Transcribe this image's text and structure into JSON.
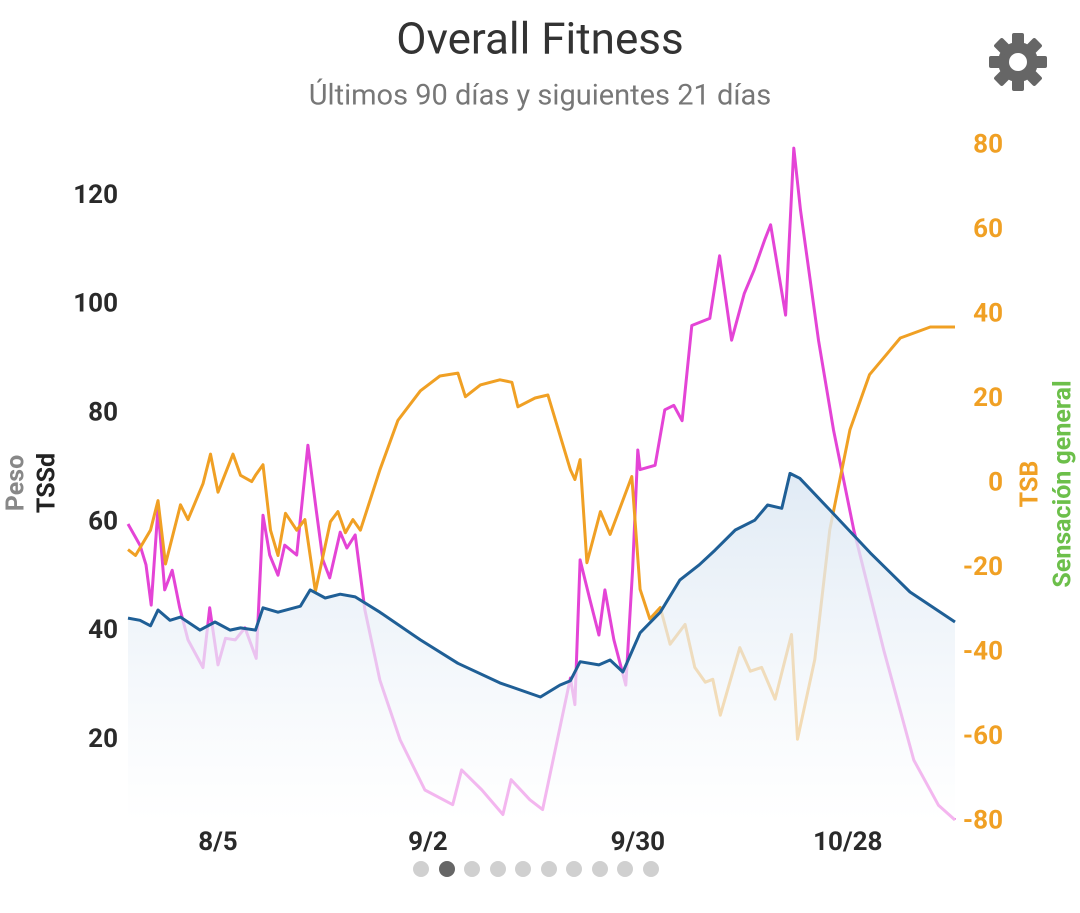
{
  "chart_data": {
    "type": "line",
    "title": "Overall Fitness",
    "subtitle": "Últimos 90 días y siguientes 21 días",
    "y_label_secondary": "Peso",
    "y_label": "TSSd",
    "y2_label": "TSB",
    "y2_label_secondary": "Sensación general",
    "grid": false,
    "xlim": [
      0,
      110.3
    ],
    "xticks": [
      {
        "value": 12,
        "label": "8/5"
      },
      {
        "value": 40,
        "label": "9/2"
      },
      {
        "value": 68,
        "label": "9/30"
      },
      {
        "value": 96,
        "label": "10/28"
      }
    ],
    "ylim": [
      5,
      130
    ],
    "yticks": [
      20,
      40,
      60,
      80,
      100,
      120
    ],
    "y2lim": [
      -80,
      81
    ],
    "y2ticks": [
      -80,
      -60,
      -40,
      -20,
      0,
      20,
      40,
      60,
      80
    ],
    "series": [
      {
        "color": "#e444d6",
        "axis": "y",
        "x": [
          0,
          1.6,
          2.4,
          3.1,
          4,
          4.9,
          5.9,
          6.9,
          8,
          10,
          10.9,
          12,
          13,
          14.3,
          15.6,
          17.1,
          18,
          18.9,
          20,
          20.9,
          22.5,
          24,
          25.1,
          26,
          26.9,
          28.3,
          29.2,
          30.3,
          31.6,
          33.6,
          36.3,
          39.6,
          43.3,
          44.5,
          47.2,
          50,
          51.1,
          53.6,
          55.3,
          59,
          59.6,
          60.3,
          61.6,
          62.8,
          63.6,
          64.8,
          66.4,
          67.3,
          68,
          68.3,
          70.3,
          71.6,
          72.8,
          73.9,
          75.2,
          77.6,
          78.9,
          80.5,
          82.2,
          83.5,
          84.9,
          85.7,
          87.7,
          88.8,
          89.7,
          92.1,
          94.1,
          96.8,
          100.8,
          104.8,
          108.1,
          110.3
        ],
        "values": [
          59.7,
          55.8,
          52.2,
          44.8,
          62.6,
          47.6,
          51.2,
          44.3,
          38.4,
          33.3,
          44.3,
          33.8,
          38.7,
          38.4,
          40.6,
          35,
          61.3,
          54,
          50.3,
          55.8,
          54,
          74.2,
          62.3,
          53.1,
          49.8,
          58.2,
          55.3,
          57.7,
          43.9,
          31,
          20,
          10.8,
          8.1,
          14.5,
          10.8,
          6.3,
          12.7,
          9,
          7.2,
          31.4,
          26.5,
          53.1,
          45.8,
          39.3,
          47.6,
          38.4,
          30.1,
          51.3,
          73.3,
          69.7,
          70.5,
          80.7,
          81.5,
          78.7,
          96.2,
          97.5,
          109,
          93.5,
          102.1,
          106.4,
          111.9,
          114.7,
          98.1,
          128.8,
          117.4,
          93.5,
          77,
          58.6,
          36.5,
          16.3,
          8,
          5.3
        ]
      },
      {
        "color": "#f0a024",
        "axis": "y2",
        "x": [
          0,
          1,
          3,
          4,
          5,
          7,
          8,
          10,
          11,
          12,
          14,
          15,
          16.5,
          17,
          18,
          19,
          20,
          21,
          22.5,
          23.6,
          25,
          27,
          28,
          29,
          30,
          31,
          33.6,
          36,
          39,
          41.6,
          44,
          45,
          47,
          49.6,
          51.2,
          52,
          54.3,
          56,
          57,
          59,
          59.6,
          60.3,
          61.2,
          63,
          64.3,
          67.2,
          68.3,
          69.6,
          71,
          72.3,
          74.3,
          75.6,
          77,
          78,
          79,
          81.6,
          83,
          84.5,
          86.3,
          88.5,
          89.3,
          91.6,
          93.6,
          96.3,
          98.9,
          103,
          107,
          110.3
        ],
        "values": [
          -15.6,
          -17,
          -11,
          -4,
          -19,
          -5,
          -8.5,
          0,
          7,
          -2,
          7,
          2,
          0.5,
          2,
          4.5,
          -11,
          -17,
          -7,
          -11,
          -8.5,
          -25.5,
          -9,
          -6.6,
          -11.6,
          -8.5,
          -11,
          3.3,
          15,
          22,
          25.5,
          26.2,
          20.6,
          23.4,
          24.6,
          24,
          18.2,
          20.3,
          21,
          15.1,
          3.3,
          1,
          5.7,
          -18.7,
          -6.6,
          -12,
          1.7,
          -25,
          -32,
          -29.3,
          -38,
          -33.3,
          -43.5,
          -47,
          -46.3,
          -54.8,
          -38.8,
          -44.4,
          -43.5,
          -51,
          -35.7,
          -60.5,
          -41.6,
          -10.9,
          12.8,
          25.8,
          34.5,
          37.1,
          37.1
        ]
      },
      {
        "color": "#1f5f96",
        "axis": "y",
        "fill": true,
        "x": [
          0,
          1.6,
          3,
          4,
          5.6,
          7,
          9.6,
          11.6,
          13.6,
          15,
          17,
          18,
          20,
          23,
          24.3,
          26.3,
          28.3,
          30.3,
          33.6,
          39,
          44,
          49.6,
          55,
          57.6,
          59,
          60.3,
          62.8,
          64.3,
          66,
          68.3,
          71,
          73.6,
          76.2,
          78.3,
          81,
          83.6,
          85.3,
          87.2,
          88.3,
          89.6,
          93.6,
          99,
          104.3,
          110.3
        ],
        "values": [
          42.4,
          42,
          41,
          43.9,
          42,
          42.6,
          40.2,
          41.7,
          40.2,
          40.6,
          40.2,
          44.3,
          43.5,
          44.6,
          47.6,
          46.1,
          46.8,
          46.3,
          43.5,
          38.4,
          34.1,
          30.5,
          27.9,
          30.1,
          30.9,
          34.4,
          33.8,
          34.7,
          32.5,
          39.7,
          43.5,
          49.4,
          52.2,
          54.9,
          58.6,
          60.4,
          63.2,
          62.6,
          69,
          68.1,
          62.3,
          54.4,
          47.2,
          41.7
        ]
      }
    ]
  }
}
